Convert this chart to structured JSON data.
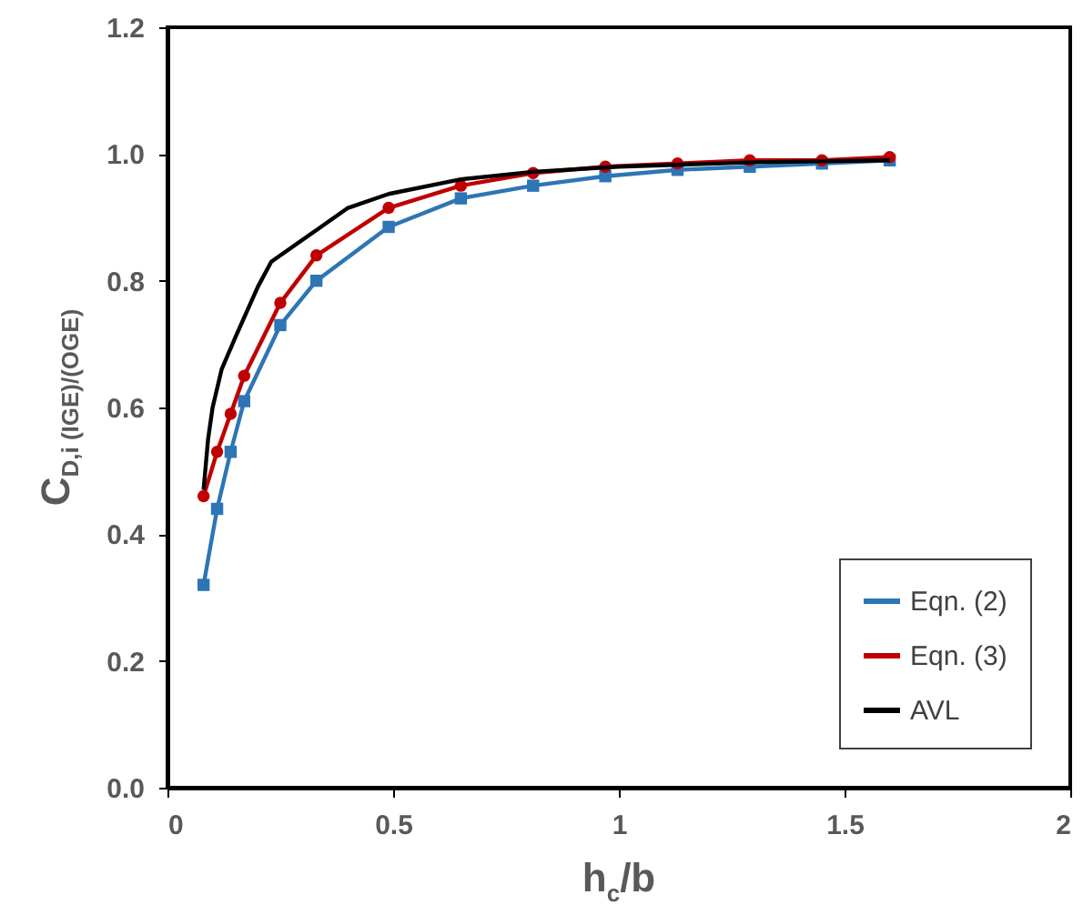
{
  "chart_data": {
    "type": "line",
    "xlabel": "h$_{c}$/b",
    "ylabel": "C$_{D,i (IGE)/(OGE)}$",
    "xlim": [
      0,
      2
    ],
    "xticks": [
      0,
      0.5,
      1,
      1.5,
      2
    ],
    "ylim": [
      0,
      1.2
    ],
    "yticks": [
      {
        "value": 0,
        "label": "0.0"
      },
      {
        "value": 0.2,
        "label": "0.2"
      },
      {
        "value": 0.4,
        "label": "0.4"
      },
      {
        "value": 0.6,
        "label": "0.6"
      },
      {
        "value": 0.8,
        "label": "0.8"
      },
      {
        "value": 1,
        "label": "1.0"
      },
      {
        "value": 1.2,
        "label": "1.2"
      }
    ],
    "grid": false,
    "legend": "bottom right",
    "series": [
      {
        "name": "Eqn. (2)",
        "color": "#2e75b6",
        "marker": "square",
        "x": [
          0.08,
          0.11,
          0.14,
          0.17,
          0.25,
          0.33,
          0.49,
          0.65,
          0.81,
          0.97,
          1.13,
          1.29,
          1.45,
          1.6
        ],
        "values": [
          0.32,
          0.44,
          0.53,
          0.61,
          0.73,
          0.8,
          0.885,
          0.93,
          0.95,
          0.965,
          0.975,
          0.98,
          0.985,
          0.99
        ]
      },
      {
        "name": "Eqn. (3)",
        "color": "#c00000",
        "marker": "circle",
        "x": [
          0.08,
          0.11,
          0.14,
          0.17,
          0.25,
          0.33,
          0.49,
          0.65,
          0.81,
          0.97,
          1.13,
          1.29,
          1.45,
          1.6
        ],
        "values": [
          0.46,
          0.53,
          0.59,
          0.65,
          0.765,
          0.84,
          0.915,
          0.95,
          0.97,
          0.98,
          0.985,
          0.99,
          0.99,
          0.995
        ]
      },
      {
        "name": "AVL",
        "color": "#000000",
        "marker": "none",
        "x": [
          0.08,
          0.09,
          0.1,
          0.12,
          0.15,
          0.2,
          0.23,
          0.33,
          0.4,
          0.49,
          0.65,
          0.81,
          1.0,
          1.3,
          1.6
        ],
        "values": [
          0.47,
          0.55,
          0.6,
          0.66,
          0.71,
          0.79,
          0.83,
          0.88,
          0.915,
          0.937,
          0.96,
          0.972,
          0.98,
          0.987,
          0.99
        ]
      }
    ]
  }
}
